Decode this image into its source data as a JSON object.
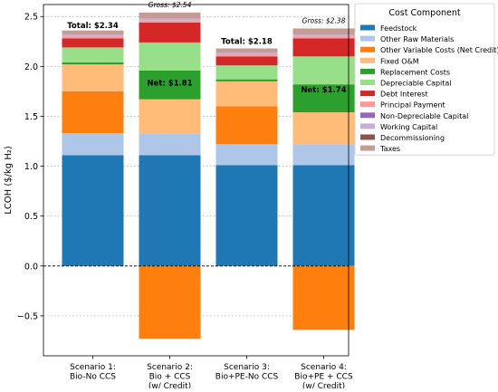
{
  "chart_data": {
    "type": "bar",
    "stacked": true,
    "ylabel": "LCOH ($/kg H₂)",
    "ylim": [
      -0.9,
      2.62
    ],
    "yticks": [
      -0.5,
      0.0,
      0.5,
      1.0,
      1.5,
      2.0,
      2.5
    ],
    "grid": "y-dotted",
    "legend_title": "Cost Component",
    "legend_position": "right",
    "categories": [
      [
        "Scenario 1:",
        "Bio-No CCS"
      ],
      [
        "Scenario 2:",
        "Bio + CCS",
        "(w/ Credit)"
      ],
      [
        "Scenario 3:",
        "Bio+PE-No CCS"
      ],
      [
        "Scenario 4:",
        "Bio+PE + CCS",
        "(w/ Credit)"
      ]
    ],
    "series": [
      {
        "name": "Feedstock",
        "color": "#1f77b4",
        "values": [
          1.11,
          1.11,
          1.01,
          1.01
        ]
      },
      {
        "name": "Other Raw Materials",
        "color": "#aec7e8",
        "values": [
          0.22,
          0.22,
          0.21,
          0.21
        ]
      },
      {
        "name": "Other Variable Costs (Net Credit)",
        "color": "#ff7f0e",
        "values": [
          0.42,
          -0.73,
          0.38,
          -0.64
        ]
      },
      {
        "name": "Fixed O&M",
        "color": "#ffbb78",
        "values": [
          0.27,
          0.34,
          0.25,
          0.32
        ]
      },
      {
        "name": "Replacement Costs",
        "color": "#2ca02c",
        "values": [
          0.02,
          0.29,
          0.02,
          0.28
        ]
      },
      {
        "name": "Depreciable Capital",
        "color": "#98df8a",
        "values": [
          0.15,
          0.28,
          0.14,
          0.28
        ]
      },
      {
        "name": "Debt Interest",
        "color": "#d62728",
        "values": [
          0.09,
          0.2,
          0.09,
          0.18
        ]
      },
      {
        "name": "Principal Payment",
        "color": "#ff9896",
        "values": [
          0.02,
          0.02,
          0.02,
          0.02
        ]
      },
      {
        "name": "Non-Depreciable Capital",
        "color": "#9467bd",
        "values": [
          0.0,
          0.0,
          0.0,
          0.0
        ]
      },
      {
        "name": "Working Capital",
        "color": "#c5b0d5",
        "values": [
          0.02,
          0.02,
          0.02,
          0.02
        ]
      },
      {
        "name": "Decommissioning",
        "color": "#8c564b",
        "values": [
          0.0,
          0.0,
          0.0,
          0.0
        ]
      },
      {
        "name": "Taxes",
        "color": "#c49c94",
        "values": [
          0.04,
          0.06,
          0.04,
          0.06
        ]
      }
    ],
    "annotations": [
      {
        "bar": 0,
        "text": "Total: $2.34",
        "value": 2.34,
        "style": "bold"
      },
      {
        "bar": 1,
        "text": "Gross: $2.54",
        "value": 2.54,
        "style": "italic"
      },
      {
        "bar": 1,
        "text": "Net: $1.81",
        "value": 1.81,
        "style": "bold"
      },
      {
        "bar": 2,
        "text": "Total: $2.18",
        "value": 2.18,
        "style": "bold"
      },
      {
        "bar": 3,
        "text": "Gross: $2.38",
        "value": 2.38,
        "style": "italic"
      },
      {
        "bar": 3,
        "text": "Net: $1.74",
        "value": 1.74,
        "style": "bold"
      }
    ]
  }
}
